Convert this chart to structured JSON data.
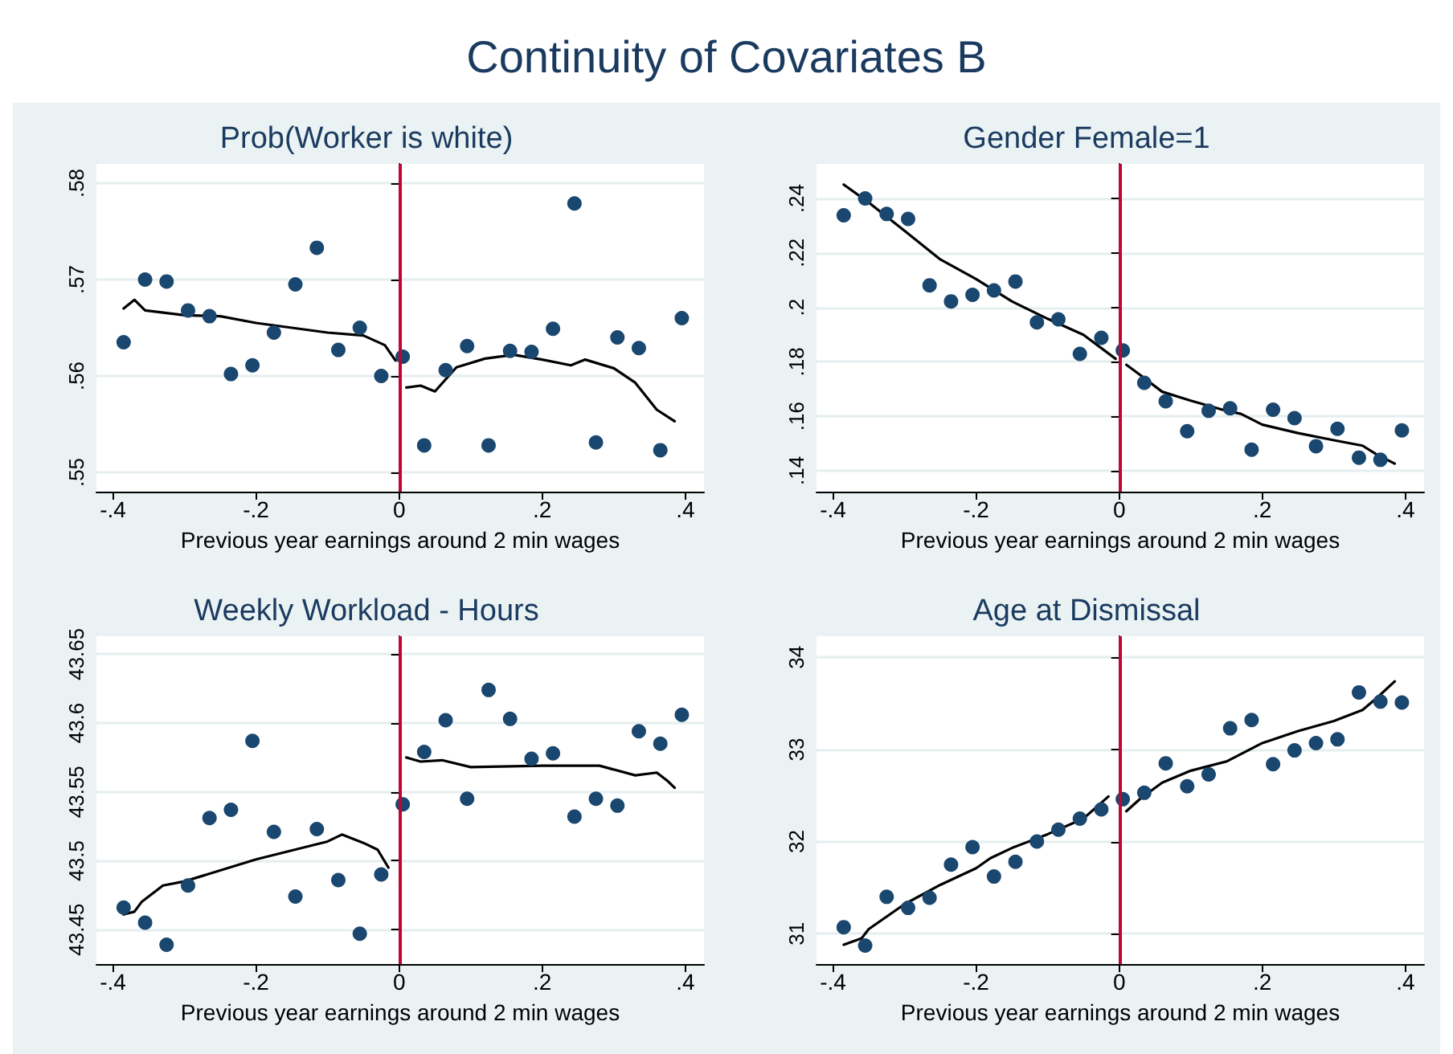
{
  "chart_data": [
    {
      "type": "other",
      "title": "Continuity of Covariates B"
    },
    {
      "type": "scatter",
      "title": "Prob(Worker is white)",
      "xlabel": "Previous year earnings around 2 min wages",
      "grid": "y",
      "marker": "circle",
      "xlim": [
        -0.423,
        0.426
      ],
      "xticks": [
        {
          "value": -0.4,
          "label": "-.4"
        },
        {
          "value": -0.2,
          "label": "-.2"
        },
        {
          "value": 0,
          "label": "0"
        },
        {
          "value": 0.2,
          "label": ".2"
        },
        {
          "value": 0.4,
          "label": ".4"
        }
      ],
      "ylim": [
        0.548,
        0.582
      ],
      "yticks": [
        {
          "value": 0.55,
          "label": ".55"
        },
        {
          "value": 0.56,
          "label": ".56"
        },
        {
          "value": 0.57,
          "label": ".57"
        },
        {
          "value": 0.58,
          "label": ".58"
        }
      ],
      "x": [
        -0.385,
        -0.355,
        -0.325,
        -0.295,
        -0.265,
        -0.235,
        -0.205,
        -0.175,
        -0.145,
        -0.115,
        -0.085,
        -0.055,
        -0.025,
        0.005,
        0.035,
        0.065,
        0.095,
        0.125,
        0.155,
        0.185,
        0.215,
        0.245,
        0.275,
        0.305,
        0.335,
        0.365,
        0.395
      ],
      "ref_lines": [
        {
          "axis": "x",
          "value": 0,
          "color": "#c10534"
        }
      ],
      "series": [
        {
          "color": "#1a476f",
          "values": [
            0.5635,
            0.57,
            0.5698,
            0.5668,
            0.5662,
            0.5602,
            0.5611,
            0.5645,
            0.5695,
            0.5733,
            0.5627,
            0.565,
            0.56,
            0.562,
            0.5528,
            0.5606,
            0.5631,
            0.5528,
            0.5626,
            0.5625,
            0.5649,
            0.5779,
            0.5531,
            0.564,
            0.5629,
            0.5523,
            0.566
          ]
        },
        {
          "type": "line",
          "color": "#000000",
          "marker": "none",
          "line_style": "solid",
          "x": [
            -0.385,
            -0.37,
            -0.355,
            -0.3,
            -0.25,
            -0.2,
            -0.15,
            -0.1,
            -0.05,
            -0.02,
            -0.005
          ],
          "values": [
            0.567,
            0.5679,
            0.5668,
            0.5663,
            0.5662,
            0.5655,
            0.565,
            0.5645,
            0.5642,
            0.5632,
            0.5616
          ]
        },
        {
          "type": "line",
          "color": "#000000",
          "marker": "none",
          "line_style": "solid",
          "x": [
            0.01,
            0.03,
            0.05,
            0.08,
            0.12,
            0.16,
            0.2,
            0.24,
            0.26,
            0.3,
            0.33,
            0.36,
            0.385
          ],
          "values": [
            0.5588,
            0.559,
            0.5584,
            0.5609,
            0.5618,
            0.5622,
            0.5617,
            0.5611,
            0.5617,
            0.5608,
            0.5593,
            0.5565,
            0.5553
          ]
        }
      ]
    },
    {
      "type": "scatter",
      "title": "Gender Female=1",
      "xlabel": "Previous year earnings around 2 min wages",
      "grid": "y",
      "marker": "circle",
      "xlim": [
        -0.423,
        0.426
      ],
      "xticks": [
        {
          "value": -0.4,
          "label": "-.4"
        },
        {
          "value": -0.2,
          "label": "-.2"
        },
        {
          "value": 0,
          "label": "0"
        },
        {
          "value": 0.2,
          "label": ".2"
        },
        {
          "value": 0.4,
          "label": ".4"
        }
      ],
      "ylim": [
        0.1323,
        0.2527
      ],
      "yticks": [
        {
          "value": 0.14,
          "label": ".14"
        },
        {
          "value": 0.16,
          "label": ".16"
        },
        {
          "value": 0.18,
          "label": ".18"
        },
        {
          "value": 0.2,
          "label": ".2"
        },
        {
          "value": 0.22,
          "label": ".22"
        },
        {
          "value": 0.24,
          "label": ".24"
        }
      ],
      "x": [
        -0.385,
        -0.355,
        -0.325,
        -0.295,
        -0.265,
        -0.235,
        -0.205,
        -0.175,
        -0.145,
        -0.115,
        -0.085,
        -0.055,
        -0.025,
        0.005,
        0.035,
        0.065,
        0.095,
        0.125,
        0.155,
        0.185,
        0.215,
        0.245,
        0.275,
        0.305,
        0.335,
        0.365,
        0.395
      ],
      "ref_lines": [
        {
          "axis": "x",
          "value": 0,
          "color": "#c10534"
        }
      ],
      "series": [
        {
          "color": "#1a476f",
          "values": [
            0.2338,
            0.24,
            0.2343,
            0.2325,
            0.2081,
            0.2022,
            0.2046,
            0.2062,
            0.2095,
            0.1945,
            0.1956,
            0.1829,
            0.1888,
            0.1842,
            0.1723,
            0.1655,
            0.1545,
            0.162,
            0.1629,
            0.1477,
            0.1624,
            0.1593,
            0.149,
            0.1554,
            0.1448,
            0.144,
            0.1548
          ]
        },
        {
          "type": "line",
          "color": "#000000",
          "marker": "none",
          "line_style": "solid",
          "x": [
            -0.385,
            -0.35,
            -0.3,
            -0.25,
            -0.2,
            -0.15,
            -0.1,
            -0.05,
            -0.005
          ],
          "values": [
            0.2451,
            0.2385,
            0.2281,
            0.2176,
            0.2104,
            0.2022,
            0.1958,
            0.1899,
            0.1811
          ]
        },
        {
          "type": "line",
          "color": "#000000",
          "marker": "none",
          "line_style": "solid",
          "x": [
            0.01,
            0.03,
            0.06,
            0.1,
            0.15,
            0.17,
            0.2,
            0.25,
            0.3,
            0.34,
            0.36,
            0.385
          ],
          "values": [
            0.1789,
            0.175,
            0.169,
            0.1657,
            0.162,
            0.1609,
            0.1569,
            0.1538,
            0.1512,
            0.1492,
            0.1459,
            0.1426
          ]
        }
      ]
    },
    {
      "type": "scatter",
      "title": "Weekly Workload - Hours",
      "xlabel": "Previous year earnings around 2 min wages",
      "grid": "y",
      "marker": "circle",
      "xlim": [
        -0.423,
        0.426
      ],
      "xticks": [
        {
          "value": -0.4,
          "label": "-.4"
        },
        {
          "value": -0.2,
          "label": "-.2"
        },
        {
          "value": 0,
          "label": "0"
        },
        {
          "value": 0.2,
          "label": ".2"
        },
        {
          "value": 0.4,
          "label": ".4"
        }
      ],
      "ylim": [
        43.425,
        43.663
      ],
      "yticks": [
        43.45,
        43.5,
        43.55,
        43.6,
        43.65
      ],
      "x": [
        -0.385,
        -0.355,
        -0.325,
        -0.295,
        -0.265,
        -0.235,
        -0.205,
        -0.175,
        -0.145,
        -0.115,
        -0.085,
        -0.055,
        -0.025,
        0.005,
        0.035,
        0.065,
        0.095,
        0.125,
        0.155,
        0.185,
        0.215,
        0.245,
        0.275,
        0.305,
        0.335,
        0.365,
        0.395
      ],
      "ref_lines": [
        {
          "axis": "x",
          "value": 0,
          "color": "#c10534"
        }
      ],
      "series": [
        {
          "color": "#1a476f",
          "values": [
            43.466,
            43.455,
            43.439,
            43.482,
            43.531,
            43.537,
            43.587,
            43.521,
            43.474,
            43.523,
            43.486,
            43.447,
            43.49,
            43.541,
            43.579,
            43.602,
            43.545,
            43.624,
            43.603,
            43.574,
            43.578,
            43.532,
            43.545,
            43.54,
            43.594,
            43.585,
            43.606
          ]
        },
        {
          "type": "line",
          "color": "#000000",
          "marker": "none",
          "line_style": "solid",
          "x": [
            -0.385,
            -0.37,
            -0.36,
            -0.33,
            -0.3,
            -0.2,
            -0.1,
            -0.08,
            -0.05,
            -0.03,
            -0.015
          ],
          "values": [
            43.461,
            43.463,
            43.47,
            43.482,
            43.485,
            43.501,
            43.514,
            43.519,
            43.513,
            43.508,
            43.495
          ]
        },
        {
          "type": "line",
          "color": "#000000",
          "marker": "none",
          "line_style": "solid",
          "x": [
            0.01,
            0.03,
            0.06,
            0.1,
            0.2,
            0.28,
            0.33,
            0.36,
            0.375,
            0.385
          ],
          "values": [
            43.575,
            43.572,
            43.573,
            43.568,
            43.569,
            43.569,
            43.562,
            43.564,
            43.558,
            43.553
          ]
        }
      ]
    },
    {
      "type": "scatter",
      "title": "Age at Dismissal",
      "xlabel": "Previous year earnings around 2 min wages",
      "grid": "y",
      "marker": "circle",
      "xlim": [
        -0.423,
        0.426
      ],
      "xticks": [
        {
          "value": -0.4,
          "label": "-.4"
        },
        {
          "value": -0.2,
          "label": "-.2"
        },
        {
          "value": 0,
          "label": "0"
        },
        {
          "value": 0.2,
          "label": ".2"
        },
        {
          "value": 0.4,
          "label": ".4"
        }
      ],
      "ylim": [
        30.67,
        34.23
      ],
      "yticks": [
        31,
        32,
        33,
        34
      ],
      "x": [
        -0.385,
        -0.355,
        -0.325,
        -0.295,
        -0.265,
        -0.235,
        -0.205,
        -0.175,
        -0.145,
        -0.115,
        -0.085,
        -0.055,
        -0.025,
        0.005,
        0.035,
        0.065,
        0.095,
        0.125,
        0.155,
        0.185,
        0.215,
        0.245,
        0.275,
        0.305,
        0.335,
        0.365,
        0.395
      ],
      "ref_lines": [
        {
          "axis": "x",
          "value": 0,
          "color": "#c10534"
        }
      ],
      "series": [
        {
          "color": "#1a476f",
          "values": [
            31.07,
            30.87,
            31.4,
            31.28,
            31.39,
            31.75,
            31.94,
            31.62,
            31.78,
            32.0,
            32.13,
            32.25,
            32.35,
            32.46,
            32.53,
            32.85,
            32.6,
            32.73,
            33.23,
            33.32,
            32.84,
            32.99,
            33.07,
            33.11,
            33.62,
            33.52,
            33.51
          ]
        },
        {
          "type": "line",
          "color": "#000000",
          "marker": "none",
          "line_style": "solid",
          "x": [
            -0.385,
            -0.36,
            -0.35,
            -0.3,
            -0.25,
            -0.2,
            -0.18,
            -0.15,
            -0.1,
            -0.05,
            -0.015
          ],
          "values": [
            30.88,
            30.95,
            31.05,
            31.32,
            31.53,
            31.71,
            31.82,
            31.93,
            32.08,
            32.25,
            32.49
          ]
        },
        {
          "type": "line",
          "color": "#000000",
          "marker": "none",
          "line_style": "solid",
          "x": [
            0.01,
            0.03,
            0.06,
            0.1,
            0.15,
            0.2,
            0.25,
            0.3,
            0.34,
            0.36,
            0.385
          ],
          "values": [
            32.33,
            32.47,
            32.64,
            32.77,
            32.87,
            33.07,
            33.2,
            33.31,
            33.43,
            33.56,
            33.74
          ]
        }
      ]
    }
  ]
}
